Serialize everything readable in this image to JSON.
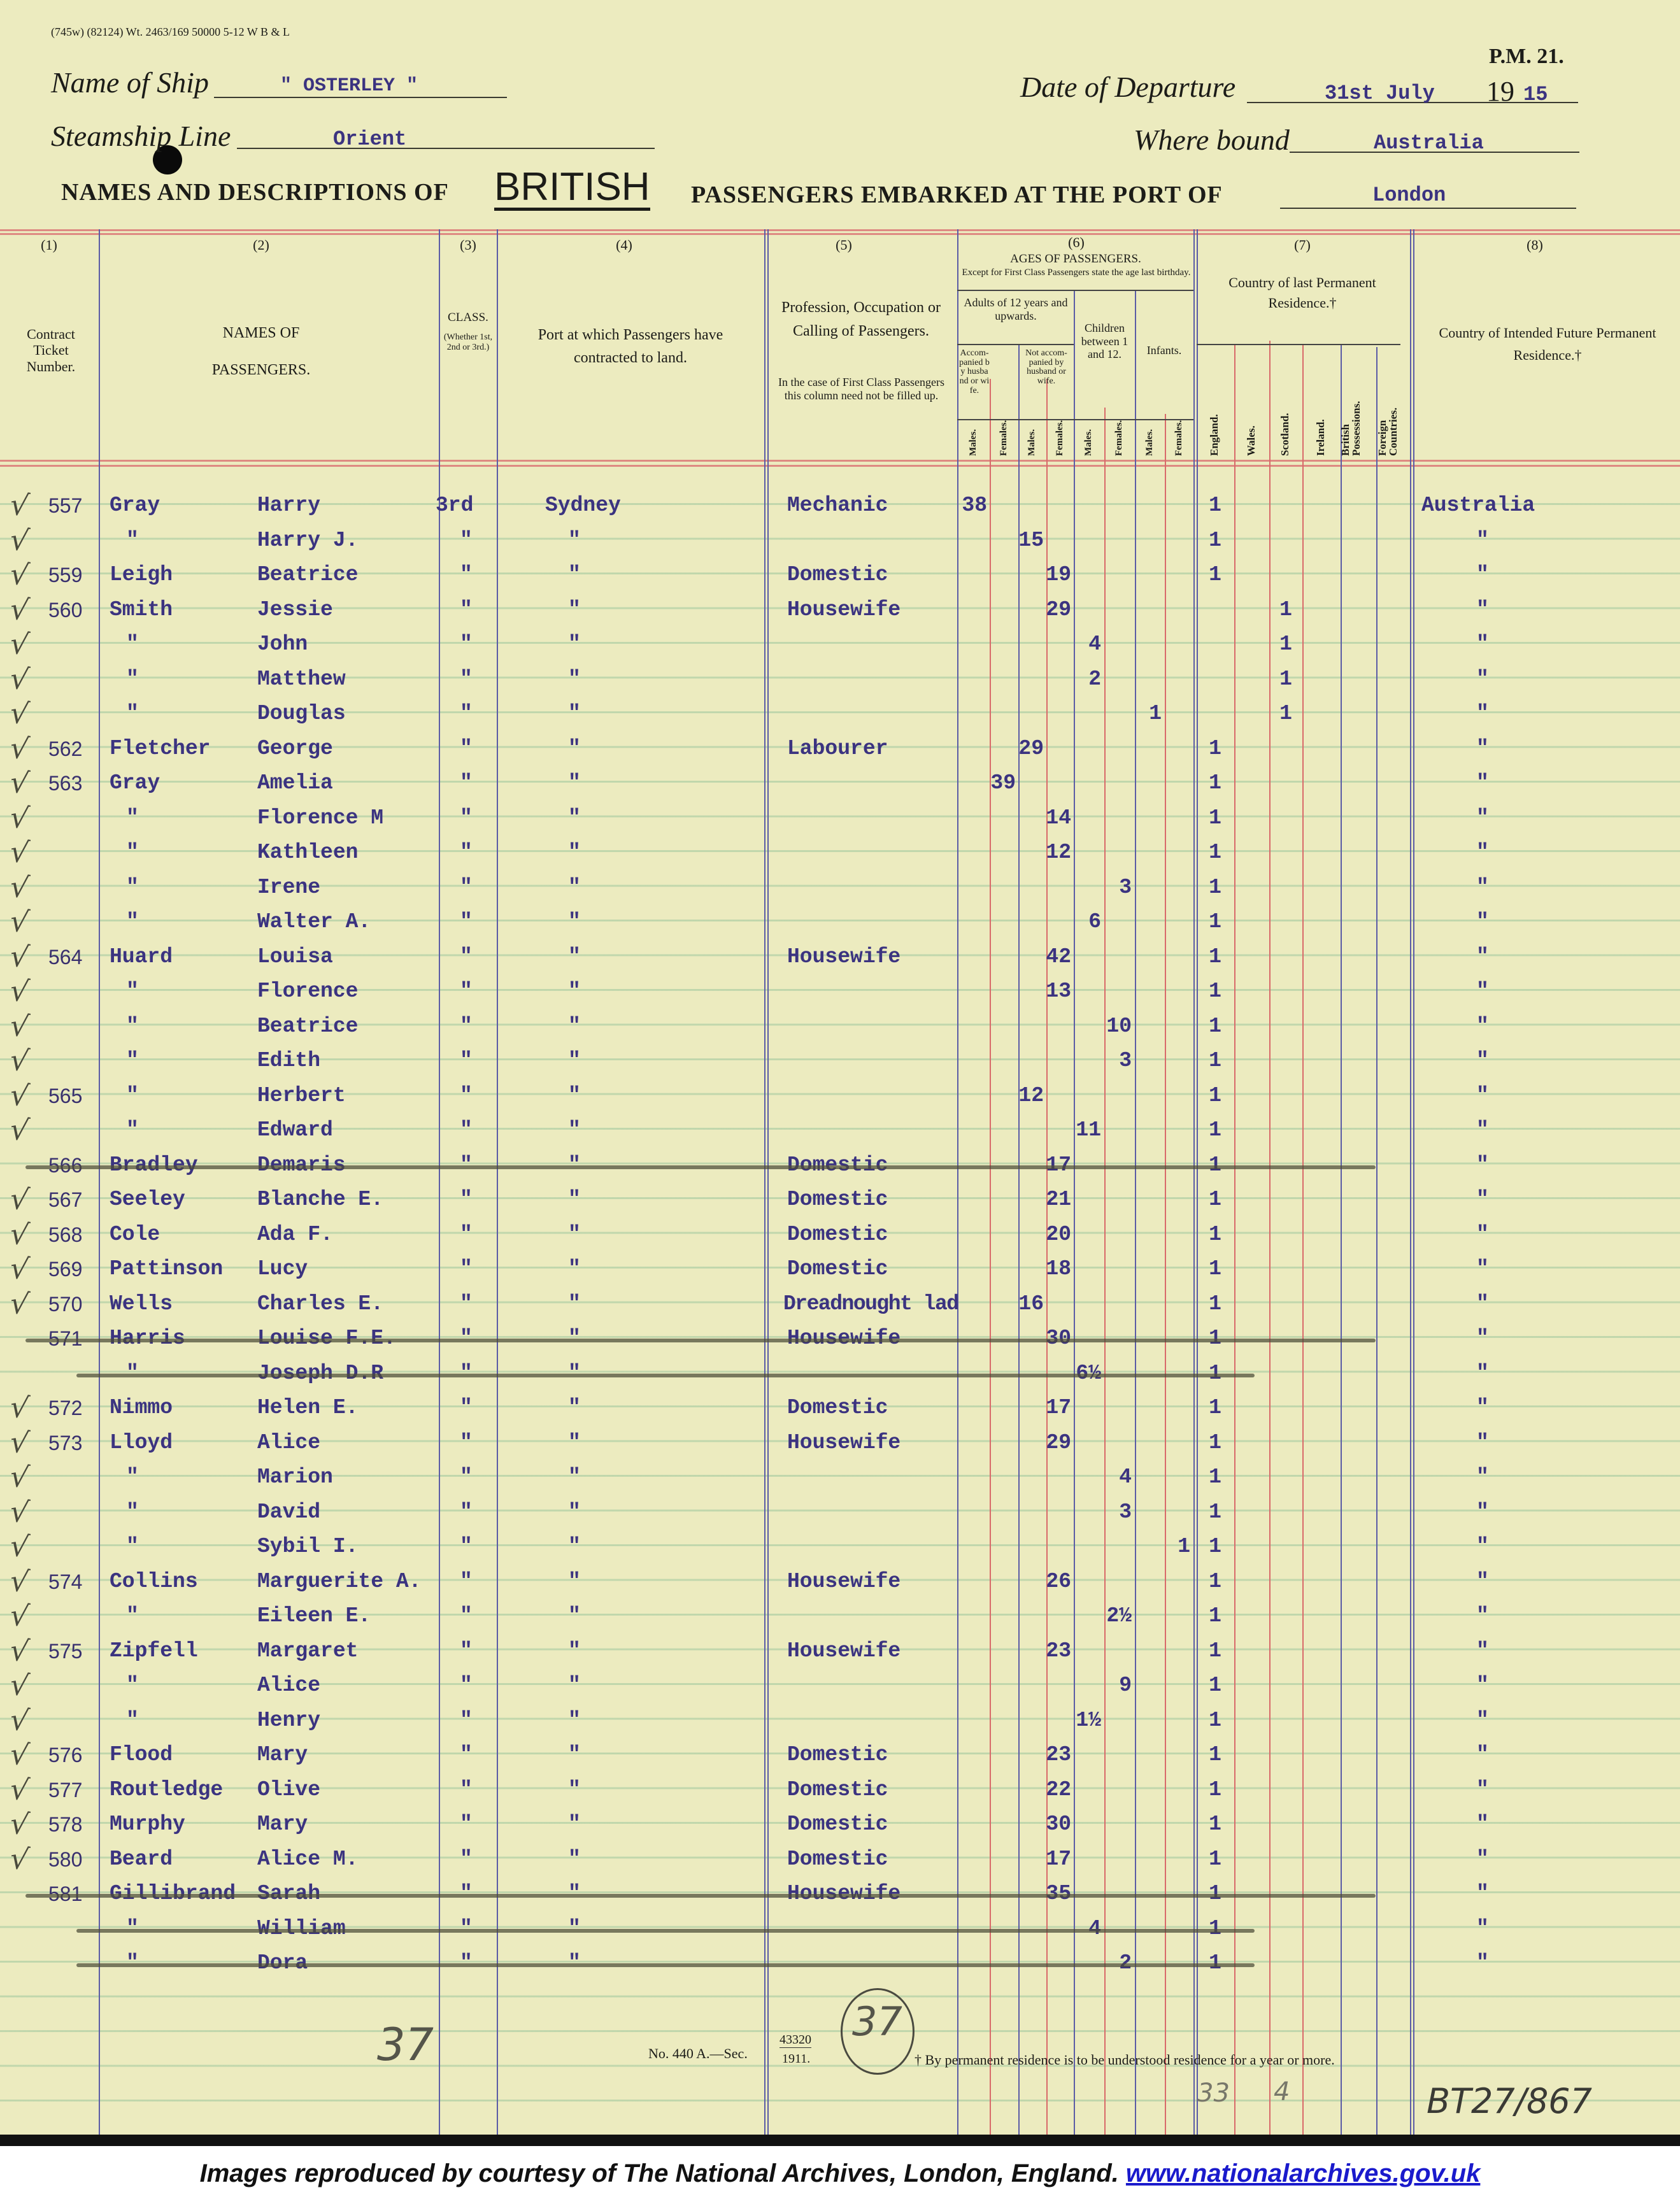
{
  "form": {
    "print_code": "(745w) (82124) Wt. 2463/169 50000 5-12 W B & L",
    "form_no": "P.M. 21.",
    "ship_label": "Name of Ship",
    "ship_value": "\" OSTERLEY \"",
    "departure_label": "Date of Departure",
    "departure_value": "31st July",
    "year_prefix": "19",
    "year_suffix": "15",
    "line_label": "Steamship Line",
    "line_value": "Orient",
    "bound_label": "Where bound",
    "bound_value": "Australia",
    "title_a": "NAMES AND DESCRIPTIONS OF",
    "title_b": "BRITISH",
    "title_c": "PASSENGERS EMBARKED AT THE PORT OF",
    "port_value": "London"
  },
  "columns": {
    "n1": "(1)",
    "n2": "(2)",
    "n3": "(3)",
    "n4": "(4)",
    "n5": "(5)",
    "n6": "(6)",
    "n7": "(7)",
    "n8": "(8)",
    "ticket": "Contract Ticket Number.",
    "names_a": "NAMES OF",
    "names_b": "PASSENGERS.",
    "class_a": "CLASS.",
    "class_b": "(Whether 1st, 2nd or 3rd.)",
    "port": "Port at which Passengers have contracted to land.",
    "prof": "Profession, Occupation or Calling of Passengers.",
    "prof_note": "In the case of First Class Passengers this column need not be filled up.",
    "ages_title": "AGES OF PASSENGERS.",
    "ages_note": "Except for First Class Passengers state the age last birthday.",
    "adults": "Adults of 12 years and upwards.",
    "accompanied": "Accom-panied by husband or wife.",
    "not_accompanied": "Not accom-panied by husband or wife.",
    "children": "Children between 1 and 12.",
    "infants": "Infants.",
    "males": "Males.",
    "females": "Females.",
    "residence": "Country of last Permanent Residence.†",
    "england": "England.",
    "wales": "Wales.",
    "scotland": "Scotland.",
    "ireland": "Ireland.",
    "british": "British Possessions.",
    "foreign": "Foreign Countries.",
    "future": "Country of Intended Future Permanent Residence.†"
  },
  "passengers": [
    {
      "checked": true,
      "ticket": "557",
      "surname": "Gray",
      "given": "Harry",
      "class": "3rd",
      "port": "Sydney",
      "occupation": "Mechanic",
      "age": "38",
      "age_col": "am",
      "res": "1",
      "res_col": "england",
      "future": "Australia",
      "struck": false
    },
    {
      "checked": true,
      "ticket": "",
      "surname": "\"",
      "given": "Harry J.",
      "class": "\"",
      "port": "\"",
      "occupation": "",
      "age": "15",
      "age_col": "nm",
      "res": "1",
      "res_col": "england",
      "future": "\"",
      "struck": false
    },
    {
      "checked": true,
      "ticket": "559",
      "surname": "Leigh",
      "given": "Beatrice",
      "class": "\"",
      "port": "\"",
      "occupation": "Domestic",
      "age": "19",
      "age_col": "nf",
      "res": "1",
      "res_col": "england",
      "future": "\"",
      "struck": false
    },
    {
      "checked": true,
      "ticket": "560",
      "surname": "Smith",
      "given": "Jessie",
      "class": "\"",
      "port": "\"",
      "occupation": "Housewife",
      "age": "29",
      "age_col": "nf",
      "res": "1",
      "res_col": "scotland",
      "future": "\"",
      "struck": false
    },
    {
      "checked": true,
      "ticket": "",
      "surname": "\"",
      "given": "John",
      "class": "\"",
      "port": "\"",
      "occupation": "",
      "age": "4",
      "age_col": "cm",
      "res": "1",
      "res_col": "scotland",
      "future": "\"",
      "struck": false
    },
    {
      "checked": true,
      "ticket": "",
      "surname": "\"",
      "given": "Matthew",
      "class": "\"",
      "port": "\"",
      "occupation": "",
      "age": "2",
      "age_col": "cm",
      "res": "1",
      "res_col": "scotland",
      "future": "\"",
      "struck": false
    },
    {
      "checked": true,
      "ticket": "",
      "surname": "\"",
      "given": "Douglas",
      "class": "\"",
      "port": "\"",
      "occupation": "",
      "age": "1",
      "age_col": "im",
      "res": "1",
      "res_col": "scotland",
      "future": "\"",
      "struck": false
    },
    {
      "checked": true,
      "ticket": "562",
      "surname": "Fletcher",
      "given": "George",
      "class": "\"",
      "port": "\"",
      "occupation": "Labourer",
      "age": "29",
      "age_col": "nm",
      "res": "1",
      "res_col": "england",
      "future": "\"",
      "struck": false
    },
    {
      "checked": true,
      "ticket": "563",
      "surname": "Gray",
      "given": "Amelia",
      "class": "\"",
      "port": "\"",
      "occupation": "",
      "age": "39",
      "age_col": "af",
      "res": "1",
      "res_col": "england",
      "future": "\"",
      "struck": false
    },
    {
      "checked": true,
      "ticket": "",
      "surname": "\"",
      "given": "Florence M",
      "class": "\"",
      "port": "\"",
      "occupation": "",
      "age": "14",
      "age_col": "nf",
      "res": "1",
      "res_col": "england",
      "future": "\"",
      "struck": false
    },
    {
      "checked": true,
      "ticket": "",
      "surname": "\"",
      "given": "Kathleen",
      "class": "\"",
      "port": "\"",
      "occupation": "",
      "age": "12",
      "age_col": "nf",
      "res": "1",
      "res_col": "england",
      "future": "\"",
      "struck": false
    },
    {
      "checked": true,
      "ticket": "",
      "surname": "\"",
      "given": "Irene",
      "class": "\"",
      "port": "\"",
      "occupation": "",
      "age": "3",
      "age_col": "cf",
      "res": "1",
      "res_col": "england",
      "future": "\"",
      "struck": false
    },
    {
      "checked": true,
      "ticket": "",
      "surname": "\"",
      "given": "Walter A.",
      "class": "\"",
      "port": "\"",
      "occupation": "",
      "age": "6",
      "age_col": "cm",
      "res": "1",
      "res_col": "england",
      "future": "\"",
      "struck": false
    },
    {
      "checked": true,
      "ticket": "564",
      "surname": "Huard",
      "given": "Louisa",
      "class": "\"",
      "port": "\"",
      "occupation": "Housewife",
      "age": "42",
      "age_col": "nf",
      "res": "1",
      "res_col": "england",
      "future": "\"",
      "struck": false
    },
    {
      "checked": true,
      "ticket": "",
      "surname": "\"",
      "given": "Florence",
      "class": "\"",
      "port": "\"",
      "occupation": "",
      "age": "13",
      "age_col": "nf",
      "res": "1",
      "res_col": "england",
      "future": "\"",
      "struck": false
    },
    {
      "checked": true,
      "ticket": "",
      "surname": "\"",
      "given": "Beatrice",
      "class": "\"",
      "port": "\"",
      "occupation": "",
      "age": "10",
      "age_col": "cf",
      "res": "1",
      "res_col": "england",
      "future": "\"",
      "struck": false
    },
    {
      "checked": true,
      "ticket": "",
      "surname": "\"",
      "given": "Edith",
      "class": "\"",
      "port": "\"",
      "occupation": "",
      "age": "3",
      "age_col": "cf",
      "res": "1",
      "res_col": "england",
      "future": "\"",
      "struck": false
    },
    {
      "checked": true,
      "ticket": "565",
      "surname": "\"",
      "given": "Herbert",
      "class": "\"",
      "port": "\"",
      "occupation": "",
      "age": "12",
      "age_col": "nm",
      "res": "1",
      "res_col": "england",
      "future": "\"",
      "struck": false
    },
    {
      "checked": true,
      "ticket": "",
      "surname": "\"",
      "given": "Edward",
      "class": "\"",
      "port": "\"",
      "occupation": "",
      "age": "11",
      "age_col": "cm",
      "res": "1",
      "res_col": "england",
      "future": "\"",
      "struck": false
    },
    {
      "checked": false,
      "ticket": "566",
      "surname": "Bradley",
      "given": "Demaris",
      "class": "\"",
      "port": "\"",
      "occupation": "Domestic",
      "age": "17",
      "age_col": "nf",
      "res": "1",
      "res_col": "england",
      "future": "\"",
      "struck": true
    },
    {
      "checked": true,
      "ticket": "567",
      "surname": "Seeley",
      "given": "Blanche E.",
      "class": "\"",
      "port": "\"",
      "occupation": "Domestic",
      "age": "21",
      "age_col": "nf",
      "res": "1",
      "res_col": "england",
      "future": "\"",
      "struck": false
    },
    {
      "checked": true,
      "ticket": "568",
      "surname": "Cole",
      "given": "Ada F.",
      "class": "\"",
      "port": "\"",
      "occupation": "Domestic",
      "age": "20",
      "age_col": "nf",
      "res": "1",
      "res_col": "england",
      "future": "\"",
      "struck": false
    },
    {
      "checked": true,
      "ticket": "569",
      "surname": "Pattinson",
      "given": "Lucy",
      "class": "\"",
      "port": "\"",
      "occupation": "Domestic",
      "age": "18",
      "age_col": "nf",
      "res": "1",
      "res_col": "england",
      "future": "\"",
      "struck": false
    },
    {
      "checked": true,
      "ticket": "570",
      "surname": "Wells",
      "given": "Charles E.",
      "class": "\"",
      "port": "\"",
      "occupation": "Dreadnought lad",
      "age": "16",
      "age_col": "nm",
      "res": "1",
      "res_col": "england",
      "future": "\"",
      "struck": false
    },
    {
      "checked": false,
      "ticket": "571",
      "surname": "Harris",
      "given": "Louise F.E.",
      "class": "\"",
      "port": "\"",
      "occupation": "Housewife",
      "age": "30",
      "age_col": "nf",
      "res": "1",
      "res_col": "england",
      "future": "\"",
      "struck": true
    },
    {
      "checked": false,
      "ticket": "",
      "surname": "\"",
      "given": "Joseph D.R",
      "class": "\"",
      "port": "\"",
      "occupation": "",
      "age": "6½",
      "age_col": "cm",
      "res": "1",
      "res_col": "england",
      "future": "\"",
      "struck": true
    },
    {
      "checked": true,
      "ticket": "572",
      "surname": "Nimmo",
      "given": "Helen E.",
      "class": "\"",
      "port": "\"",
      "occupation": "Domestic",
      "age": "17",
      "age_col": "nf",
      "res": "1",
      "res_col": "england",
      "future": "\"",
      "struck": false
    },
    {
      "checked": true,
      "ticket": "573",
      "surname": "Lloyd",
      "given": "Alice",
      "class": "\"",
      "port": "\"",
      "occupation": "Housewife",
      "age": "29",
      "age_col": "nf",
      "res": "1",
      "res_col": "england",
      "future": "\"",
      "struck": false
    },
    {
      "checked": true,
      "ticket": "",
      "surname": "\"",
      "given": "Marion",
      "class": "\"",
      "port": "\"",
      "occupation": "",
      "age": "4",
      "age_col": "cf",
      "res": "1",
      "res_col": "england",
      "future": "\"",
      "struck": false
    },
    {
      "checked": true,
      "ticket": "",
      "surname": "\"",
      "given": "David",
      "class": "\"",
      "port": "\"",
      "occupation": "",
      "age": "3",
      "age_col": "cf",
      "res": "1",
      "res_col": "england",
      "future": "\"",
      "struck": false
    },
    {
      "checked": true,
      "ticket": "",
      "surname": "\"",
      "given": "Sybil I.",
      "class": "\"",
      "port": "\"",
      "occupation": "",
      "age": "1",
      "age_col": "if",
      "res": "1",
      "res_col": "england",
      "future": "\"",
      "struck": false
    },
    {
      "checked": true,
      "ticket": "574",
      "surname": "Collins",
      "given": "Marguerite A.",
      "class": "\"",
      "port": "\"",
      "occupation": "Housewife",
      "age": "26",
      "age_col": "nf",
      "res": "1",
      "res_col": "england",
      "future": "\"",
      "struck": false
    },
    {
      "checked": true,
      "ticket": "",
      "surname": "\"",
      "given": "Eileen E.",
      "class": "\"",
      "port": "\"",
      "occupation": "",
      "age": "2½",
      "age_col": "cf",
      "res": "1",
      "res_col": "england",
      "future": "\"",
      "struck": false
    },
    {
      "checked": true,
      "ticket": "575",
      "surname": "Zipfell",
      "given": "Margaret",
      "class": "\"",
      "port": "\"",
      "occupation": "Housewife",
      "age": "23",
      "age_col": "nf",
      "res": "1",
      "res_col": "england",
      "future": "\"",
      "struck": false
    },
    {
      "checked": true,
      "ticket": "",
      "surname": "\"",
      "given": "Alice",
      "class": "\"",
      "port": "\"",
      "occupation": "",
      "age": "9",
      "age_col": "cf",
      "res": "1",
      "res_col": "england",
      "future": "\"",
      "struck": false
    },
    {
      "checked": true,
      "ticket": "",
      "surname": "\"",
      "given": "Henry",
      "class": "\"",
      "port": "\"",
      "occupation": "",
      "age": "1½",
      "age_col": "cm",
      "res": "1",
      "res_col": "england",
      "future": "\"",
      "struck": false
    },
    {
      "checked": true,
      "ticket": "576",
      "surname": "Flood",
      "given": "Mary",
      "class": "\"",
      "port": "\"",
      "occupation": "Domestic",
      "age": "23",
      "age_col": "nf",
      "res": "1",
      "res_col": "england",
      "future": "\"",
      "struck": false
    },
    {
      "checked": true,
      "ticket": "577",
      "surname": "Routledge",
      "given": "Olive",
      "class": "\"",
      "port": "\"",
      "occupation": "Domestic",
      "age": "22",
      "age_col": "nf",
      "res": "1",
      "res_col": "england",
      "future": "\"",
      "struck": false
    },
    {
      "checked": true,
      "ticket": "578",
      "surname": "Murphy",
      "given": "Mary",
      "class": "\"",
      "port": "\"",
      "occupation": "Domestic",
      "age": "30",
      "age_col": "nf",
      "res": "1",
      "res_col": "england",
      "future": "\"",
      "struck": false
    },
    {
      "checked": true,
      "ticket": "580",
      "surname": "Beard",
      "given": "Alice M.",
      "class": "\"",
      "port": "\"",
      "occupation": "Domestic",
      "age": "17",
      "age_col": "nf",
      "res": "1",
      "res_col": "england",
      "future": "\"",
      "struck": false
    },
    {
      "checked": false,
      "ticket": "581",
      "surname": "Gillibrand",
      "given": "Sarah",
      "class": "\"",
      "port": "\"",
      "occupation": "Housewife",
      "age": "35",
      "age_col": "nf",
      "res": "1",
      "res_col": "england",
      "future": "\"",
      "struck": true
    },
    {
      "checked": false,
      "ticket": "",
      "surname": "\"",
      "given": "William",
      "class": "\"",
      "port": "\"",
      "occupation": "",
      "age": "4",
      "age_col": "cm",
      "res": "1",
      "res_col": "england",
      "future": "\"",
      "struck": true
    },
    {
      "checked": false,
      "ticket": "",
      "surname": "\"",
      "given": "Dora",
      "class": "\"",
      "port": "\"",
      "occupation": "",
      "age": "2",
      "age_col": "cf",
      "res": "1",
      "res_col": "england",
      "future": "\"",
      "struck": true
    }
  ],
  "footer": {
    "form_ref": "No. 440 A.—Sec.",
    "form_ref_num": "43320",
    "form_ref_year": "1911.",
    "note": "† By permanent residence is to be understood residence for a year or more.",
    "hand_count_left": "37",
    "hand_count_circled": "37",
    "hand_total_a": "33",
    "hand_total_b": "4",
    "archive_ref": "BT27/867"
  },
  "credits": {
    "text": "Images reproduced by courtesy of The National Archives, London, England.",
    "link": "www.nationalarchives.gov.uk"
  },
  "colors": {
    "paper": "#ecebbf",
    "typewriter_ink": "#3b3380",
    "rule_red": "#d86a6a",
    "rule_blue": "#5b5ca6"
  }
}
